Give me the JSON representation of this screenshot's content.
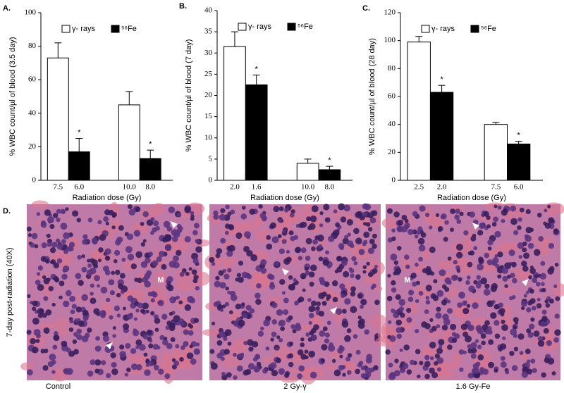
{
  "chart_data": [
    {
      "type": "bar",
      "panel_label": "A.",
      "ylabel": "% WBC count/µl of blood (3.5 day)",
      "xlabel": "Radiation dose (Gy)",
      "ylim": [
        0,
        100
      ],
      "yticks": [
        0,
        20,
        40,
        60,
        80,
        100
      ],
      "series": [
        {
          "name": "γ- rays",
          "color": "#ffffff",
          "dose_labels": [
            "7.5",
            "10.0"
          ],
          "values": [
            73,
            45
          ],
          "errors": [
            9,
            8
          ]
        },
        {
          "name": "⁵⁶Fe",
          "color": "#000000",
          "dose_labels": [
            "6.0",
            "8.0"
          ],
          "values": [
            17,
            13
          ],
          "errors": [
            8,
            5
          ],
          "annotations": [
            "*",
            "*"
          ]
        }
      ]
    },
    {
      "type": "bar",
      "panel_label": "B.",
      "ylabel": "% WBC count/µl of blood (7 day)",
      "xlabel": "Radiation dose (Gy)",
      "ylim": [
        0,
        40
      ],
      "yticks": [
        0,
        5,
        10,
        15,
        20,
        25,
        30,
        35,
        40
      ],
      "series": [
        {
          "name": "γ- rays",
          "color": "#ffffff",
          "dose_labels": [
            "2.0",
            "10.0"
          ],
          "values": [
            31.5,
            4
          ],
          "errors": [
            3.5,
            1
          ]
        },
        {
          "name": "⁵⁶Fe",
          "color": "#000000",
          "dose_labels": [
            "1.6",
            "8.0"
          ],
          "values": [
            22.5,
            2.5
          ],
          "errors": [
            2.3,
            0.8
          ],
          "annotations": [
            "*",
            "*"
          ]
        }
      ]
    },
    {
      "type": "bar",
      "panel_label": "C.",
      "ylabel": "% WBC count/µl of blood (28 day)",
      "xlabel": "Radiation dose (Gy)",
      "ylim": [
        0,
        120
      ],
      "yticks": [
        0,
        20,
        40,
        60,
        80,
        100,
        120
      ],
      "series": [
        {
          "name": "γ- rays",
          "color": "#ffffff",
          "dose_labels": [
            "2.5",
            "7.5"
          ],
          "values": [
            99,
            40
          ],
          "errors": [
            4,
            1.5
          ]
        },
        {
          "name": "⁵⁶Fe",
          "color": "#000000",
          "dose_labels": [
            "2.0",
            "6.0"
          ],
          "values": [
            63,
            26
          ],
          "errors": [
            5,
            2
          ],
          "annotations": [
            "*",
            "*"
          ]
        }
      ]
    }
  ],
  "panel_d": {
    "label": "D.",
    "ylabel": "7-day post-radiation (40X)",
    "images": [
      {
        "caption": "Control",
        "marker": "M"
      },
      {
        "caption": "2 Gy-γ"
      },
      {
        "caption": "1.6 Gy-Fe",
        "marker": "M"
      }
    ]
  }
}
